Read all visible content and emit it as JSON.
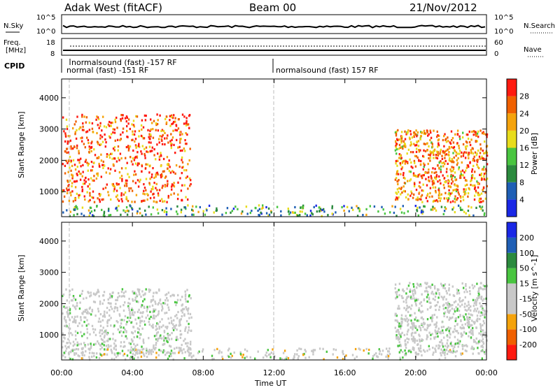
{
  "header": {
    "site": "Adak West (fitACF)",
    "beam": "Beam 00",
    "date": "21/Nov/2012"
  },
  "strip_top": {
    "left_label": "N.Sky",
    "left_ticks": [
      "10^5",
      "10^0"
    ],
    "right_label": "N.Search",
    "right_ticks": [
      "10^5",
      "10^0"
    ]
  },
  "strip_freq": {
    "left_label_1": "Freq.",
    "left_label_2": "[MHz]",
    "left_ticks": [
      "18",
      "8"
    ],
    "right_label": "Nave",
    "right_ticks": [
      "60",
      "0"
    ]
  },
  "cpid": {
    "label": "CPID",
    "segments": [
      "normalsound (fast) -157 RF",
      "normal (fast) -151 RF",
      "normalsound (fast) 157 RF"
    ]
  },
  "chart_data": [
    {
      "type": "heatmap",
      "title": "",
      "xlabel": "Time UT",
      "ylabel": "Slant Range [km]",
      "x_ticks": [
        "00:00",
        "04:00",
        "08:00",
        "12:00",
        "16:00",
        "20:00",
        "00:00"
      ],
      "y_ticks": [
        "1000",
        "2000",
        "3000",
        "4000"
      ],
      "ylim": [
        200,
        4600
      ],
      "colorbar_label": "Power [dB]",
      "colorbar_ticks": [
        "28",
        "24",
        "20",
        "16",
        "12",
        "8",
        "4"
      ],
      "colorbar_range": [
        0,
        32
      ],
      "colorbar_colors": [
        "#1a28e6",
        "#1f5fb5",
        "#2b8a3e",
        "#49c540",
        "#e8dc1c",
        "#f5a30c",
        "#f06000",
        "#ff1a10"
      ],
      "regions": [
        {
          "t": [
            0,
            7.3
          ],
          "r": [
            700,
            3500
          ],
          "value": 26
        },
        {
          "t": [
            18.8,
            24
          ],
          "r": [
            700,
            3000
          ],
          "value": 24
        },
        {
          "t": [
            0,
            24
          ],
          "r": [
            250,
            600
          ],
          "value": 12
        }
      ]
    },
    {
      "type": "heatmap",
      "title": "",
      "xlabel": "Time UT",
      "ylabel": "Slant Range [km]",
      "x_ticks": [
        "00:00",
        "04:00",
        "08:00",
        "12:00",
        "16:00",
        "20:00",
        "00:00"
      ],
      "y_ticks": [
        "1000",
        "2000",
        "3000",
        "4000"
      ],
      "ylim": [
        200,
        4600
      ],
      "colorbar_label": "Velocity [m s^-1]",
      "colorbar_ticks": [
        "200",
        "100",
        "50",
        "15",
        "-15",
        "-50",
        "-100",
        "-200"
      ],
      "colorbar_range": [
        -250,
        250
      ],
      "colorbar_colors": [
        "#ff1a10",
        "#f06000",
        "#f5a30c",
        "#c8c8c8",
        "#c8c8c8",
        "#49c540",
        "#2b8a3e",
        "#1f5fb5",
        "#1a28e6"
      ],
      "regions": [
        {
          "t": [
            0,
            7.3
          ],
          "r": [
            400,
            2500
          ],
          "value": 0
        },
        {
          "t": [
            18.8,
            24
          ],
          "r": [
            400,
            2700
          ],
          "value": 0
        },
        {
          "t": [
            0,
            24
          ],
          "r": [
            250,
            600
          ],
          "value": -20
        }
      ]
    }
  ]
}
